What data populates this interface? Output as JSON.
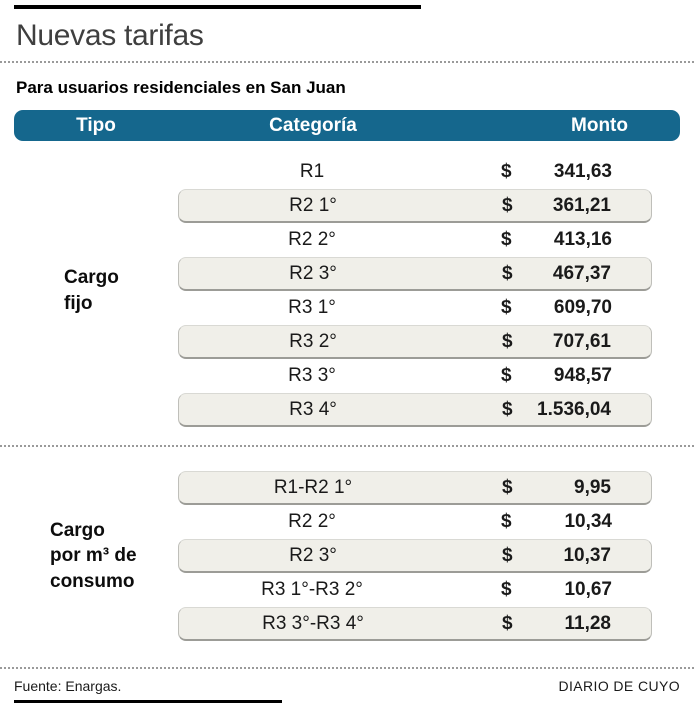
{
  "header": {
    "title": "Nuevas tarifas",
    "subtitle": "Para usuarios residenciales en San Juan"
  },
  "colors": {
    "header_bar": "#15678d",
    "shaded_row": "#f0efe9",
    "title_text": "#3f3f3f"
  },
  "table": {
    "columns": [
      "Tipo",
      "Categoría",
      "Monto"
    ],
    "currency_symbol": "$",
    "sections": [
      {
        "type_label_lines": [
          "Cargo",
          "fijo"
        ],
        "rows": [
          {
            "category": "R1",
            "amount": "341,63"
          },
          {
            "category": "R2 1°",
            "amount": "361,21"
          },
          {
            "category": "R2 2°",
            "amount": "413,16"
          },
          {
            "category": "R2 3°",
            "amount": "467,37"
          },
          {
            "category": "R3 1°",
            "amount": "609,70"
          },
          {
            "category": "R3 2°",
            "amount": "707,61"
          },
          {
            "category": "R3 3°",
            "amount": "948,57"
          },
          {
            "category": "R3 4°",
            "amount": "1.536,04"
          }
        ]
      },
      {
        "type_label_lines": [
          "Cargo",
          "por m³ de",
          "consumo"
        ],
        "rows": [
          {
            "category": "R1-R2 1°",
            "amount": "9,95"
          },
          {
            "category": "R2 2°",
            "amount": "10,34"
          },
          {
            "category": "R2 3°",
            "amount": "10,37"
          },
          {
            "category": "R3 1°-R3 2°",
            "amount": "10,67"
          },
          {
            "category": "R3 3°-R3 4°",
            "amount": "11,28"
          }
        ]
      }
    ]
  },
  "footer": {
    "source": "Fuente: Enargas.",
    "credit": "DIARIO DE CUYO"
  },
  "chart_data": {
    "type": "table",
    "title": "Nuevas tarifas",
    "subtitle": "Para usuarios residenciales en San Juan",
    "columns": [
      "Tipo",
      "Categoría",
      "Monto"
    ],
    "currency": "ARS $",
    "rows": [
      [
        "Cargo fijo",
        "R1",
        341.63
      ],
      [
        "Cargo fijo",
        "R2 1°",
        361.21
      ],
      [
        "Cargo fijo",
        "R2 2°",
        413.16
      ],
      [
        "Cargo fijo",
        "R2 3°",
        467.37
      ],
      [
        "Cargo fijo",
        "R3 1°",
        609.7
      ],
      [
        "Cargo fijo",
        "R3 2°",
        707.61
      ],
      [
        "Cargo fijo",
        "R3 3°",
        948.57
      ],
      [
        "Cargo fijo",
        "R3 4°",
        1536.04
      ],
      [
        "Cargo por m³ de consumo",
        "R1-R2 1°",
        9.95
      ],
      [
        "Cargo por m³ de consumo",
        "R2 2°",
        10.34
      ],
      [
        "Cargo por m³ de consumo",
        "R2 3°",
        10.37
      ],
      [
        "Cargo por m³ de consumo",
        "R3 1°-R3 2°",
        10.67
      ],
      [
        "Cargo por m³ de consumo",
        "R3 3°-R3 4°",
        11.28
      ]
    ],
    "source": "Fuente: Enargas.",
    "credit": "DIARIO DE CUYO"
  }
}
